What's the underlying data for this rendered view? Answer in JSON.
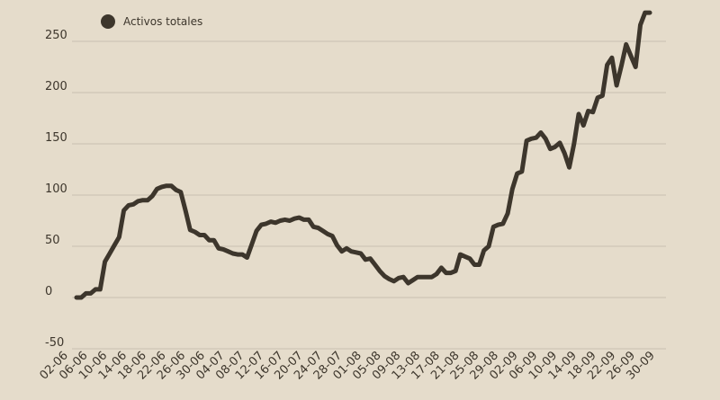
{
  "chart_data": {
    "type": "line",
    "legend": {
      "label": "Activos totales",
      "position": "top-left"
    },
    "colors": {
      "background": "#e5dccb",
      "line": "#3d362c",
      "grid": "#c9c0b0",
      "text": "#3d362c"
    },
    "ylim": [
      -50,
      285
    ],
    "yticks": [
      -50,
      0,
      50,
      100,
      150,
      200,
      250
    ],
    "grid": true,
    "x_ticks": [
      "02-06",
      "06-06",
      "10-06",
      "14-06",
      "18-06",
      "22-06",
      "26-06",
      "30-06",
      "04-07",
      "08-07",
      "12-07",
      "16-07",
      "20-07",
      "24-07",
      "28-07",
      "01-08",
      "05-08",
      "09-08",
      "13-08",
      "17-08",
      "21-08",
      "25-08",
      "29-08",
      "02-09",
      "06-09",
      "10-09",
      "14-09",
      "18-09",
      "22-09",
      "26-09",
      "30-09"
    ],
    "series": [
      {
        "name": "Activos totales",
        "values": [
          0,
          0,
          4,
          4,
          8,
          8,
          35,
          43,
          51,
          59,
          85,
          90,
          91,
          94,
          95,
          95,
          99,
          106,
          108,
          109,
          109,
          105,
          103,
          85,
          66,
          64,
          61,
          61,
          56,
          56,
          48,
          47,
          45,
          43,
          42,
          42,
          39,
          52,
          65,
          71,
          72,
          74,
          73,
          75,
          76,
          75,
          77,
          78,
          76,
          76,
          69,
          68,
          65,
          62,
          60,
          51,
          45,
          48,
          45,
          44,
          43,
          37,
          38,
          32,
          26,
          21,
          18,
          16,
          19,
          20,
          14,
          17,
          20,
          20,
          20,
          20,
          23,
          29,
          24,
          24,
          26,
          42,
          40,
          38,
          32,
          32,
          46,
          50,
          69,
          71,
          72,
          82,
          106,
          121,
          123,
          153,
          155,
          156,
          161,
          155,
          145,
          147,
          151,
          141,
          127,
          150,
          179,
          168,
          182,
          181,
          195,
          197,
          227,
          234,
          207,
          226,
          247,
          236,
          225,
          266,
          278,
          278
        ]
      }
    ]
  }
}
